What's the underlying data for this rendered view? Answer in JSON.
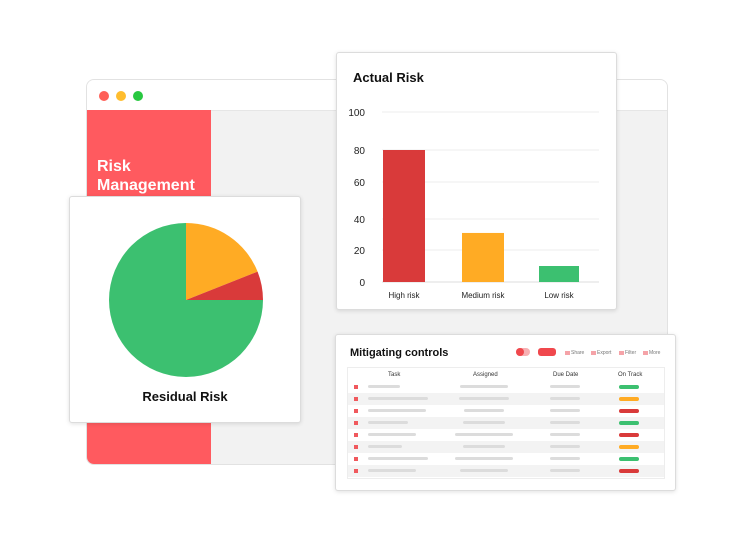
{
  "colors": {
    "brand": "#ff5a5f",
    "red": "#d93a3a",
    "orange": "#ffab24",
    "green": "#3cc070",
    "window_red": "#ff5f57",
    "window_yellow": "#ffbd2e",
    "window_green": "#28c840"
  },
  "app": {
    "title": "Risk Management"
  },
  "residual": {
    "title": "Residual Risk",
    "chart_data": {
      "type": "pie",
      "values": [
        75,
        19,
        6
      ],
      "colors": [
        "#3cc070",
        "#ffab24",
        "#d93a3a"
      ]
    }
  },
  "actual": {
    "title": "Actual Risk",
    "chart_data": {
      "type": "bar",
      "categories": [
        "High risk",
        "Medium risk",
        "Low risk"
      ],
      "values": [
        80,
        31,
        10
      ],
      "colors": [
        "#d93a3a",
        "#ffab24",
        "#3cc070"
      ],
      "yticks": [
        0,
        20,
        40,
        60,
        80,
        100
      ],
      "ylim": [
        0,
        100
      ],
      "grid": true
    }
  },
  "mitigating": {
    "title": "Mitigating controls",
    "toolbar": [
      "Share",
      "Export",
      "Filter",
      "More"
    ],
    "columns": [
      "Task",
      "Assigned",
      "Due Date",
      "On Track"
    ],
    "status_icons": [
      "green",
      "orange",
      "red",
      "green",
      "red",
      "orange",
      "green",
      "red"
    ]
  }
}
